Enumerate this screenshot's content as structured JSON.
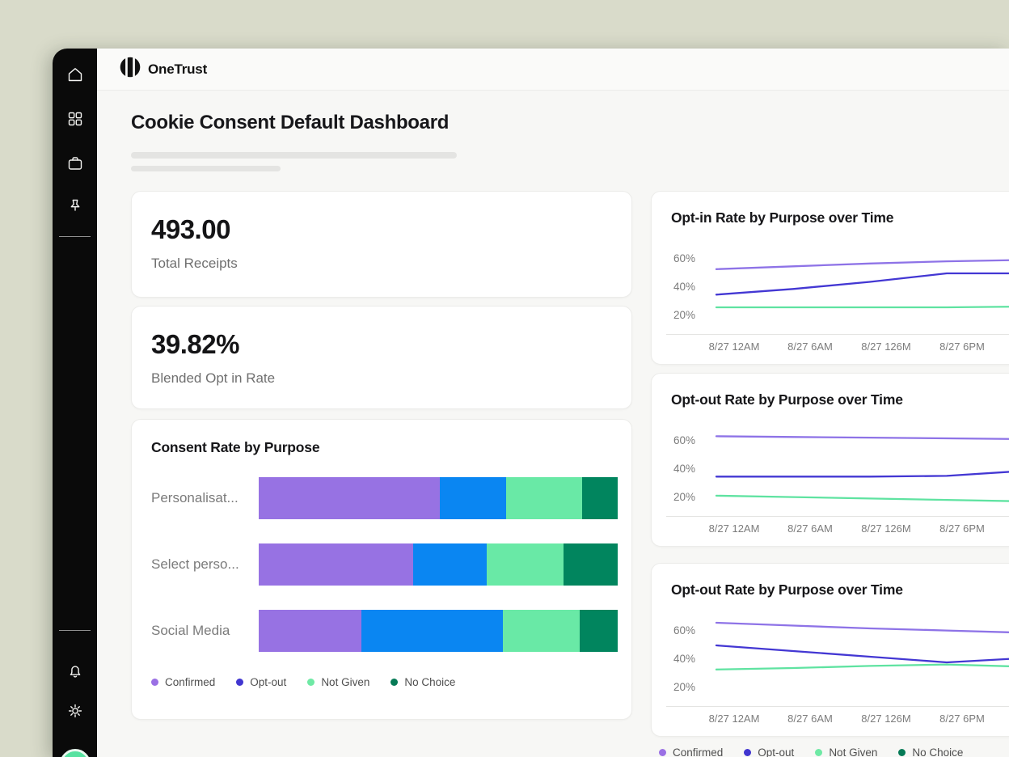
{
  "brand": {
    "name": "OneTrust"
  },
  "page": {
    "title": "Cookie Consent Default Dashboard"
  },
  "sidebar": {
    "top_icons": [
      "home",
      "apps-grid",
      "briefcase",
      "pin"
    ],
    "bottom_icons": [
      "notifications-bell",
      "settings-gear"
    ]
  },
  "stats": [
    {
      "value": "493.00",
      "label": "Total Receipts"
    },
    {
      "value": "39.82%",
      "label": "Blended Opt in Rate"
    }
  ],
  "legend": [
    {
      "label": "Confirmed",
      "color": "#9a70e4"
    },
    {
      "label": "Opt-out",
      "color": "#4136d0"
    },
    {
      "label": "Not Given",
      "color": "#6fe9a5"
    },
    {
      "label": "No Choice",
      "color": "#067a56"
    }
  ],
  "chart_data": [
    {
      "type": "bar",
      "variant": "horizontal-stacked",
      "title": "Consent Rate by Purpose",
      "categories": [
        "Personalisat...",
        "Select perso...",
        "Social Media"
      ],
      "unit": "percent of bar width",
      "series": [
        {
          "name": "Confirmed",
          "color": "#9772e3",
          "values": [
            50.5,
            43.0,
            28.5
          ]
        },
        {
          "name": "Opt-out",
          "color": "#0a86f2",
          "values": [
            18.5,
            20.5,
            39.5
          ]
        },
        {
          "name": "Not Given",
          "color": "#69e9a6",
          "values": [
            21.0,
            21.5,
            21.5
          ]
        },
        {
          "name": "No Choice",
          "color": "#01855e",
          "values": [
            10.0,
            15.0,
            10.5
          ]
        }
      ]
    },
    {
      "type": "line",
      "title": "Opt-in Rate by Purpose over Time",
      "x": [
        "8/27 12AM",
        "8/27 6AM",
        "8/27 126M",
        "8/27 6PM"
      ],
      "yticks": [
        "60%",
        "40%",
        "20%"
      ],
      "ylim": [
        0,
        70
      ],
      "grid": false,
      "legend_position": "bottom-of-column",
      "note": "lines continue past the right edge of the viewport; a fifth point is cut off",
      "series": [
        {
          "name": "Confirmed",
          "color": "#8e73e7",
          "values": [
            53,
            55,
            57,
            58.5,
            59.5
          ]
        },
        {
          "name": "Opt-out",
          "color": "#4337d3",
          "values": [
            35,
            39,
            44,
            50,
            50
          ]
        },
        {
          "name": "Not Given",
          "color": "#5fe3a1",
          "values": [
            26,
            26,
            26,
            26,
            26.5
          ]
        }
      ]
    },
    {
      "type": "line",
      "title": "Opt-out Rate by Purpose over Time",
      "x": [
        "8/27 12AM",
        "8/27 6AM",
        "8/27 126M",
        "8/27 6PM"
      ],
      "yticks": [
        "60%",
        "40%",
        "20%"
      ],
      "ylim": [
        0,
        70
      ],
      "grid": false,
      "series": [
        {
          "name": "Confirmed",
          "color": "#8e73e7",
          "values": [
            63.5,
            63,
            62.5,
            62,
            61.5
          ]
        },
        {
          "name": "Opt-out",
          "color": "#4337d3",
          "values": [
            35,
            35,
            35,
            35.5,
            39
          ]
        },
        {
          "name": "Not Given",
          "color": "#5fe3a1",
          "values": [
            21.5,
            20.5,
            19.5,
            18.5,
            17.5
          ]
        }
      ]
    },
    {
      "type": "line",
      "title": "Opt-out Rate by Purpose over Time",
      "x": [
        "8/27 12AM",
        "8/27 6AM",
        "8/27 126M",
        "8/27 6PM"
      ],
      "yticks": [
        "60%",
        "40%",
        "20%"
      ],
      "ylim": [
        0,
        70
      ],
      "grid": false,
      "series": [
        {
          "name": "Confirmed",
          "color": "#8e73e7",
          "values": [
            66,
            64,
            62,
            60.5,
            59
          ]
        },
        {
          "name": "Opt-out",
          "color": "#4337d3",
          "values": [
            50,
            46,
            42,
            38,
            41
          ]
        },
        {
          "name": "Not Given",
          "color": "#5fe3a1",
          "values": [
            33,
            34,
            35.5,
            36.5,
            35
          ]
        }
      ]
    }
  ]
}
